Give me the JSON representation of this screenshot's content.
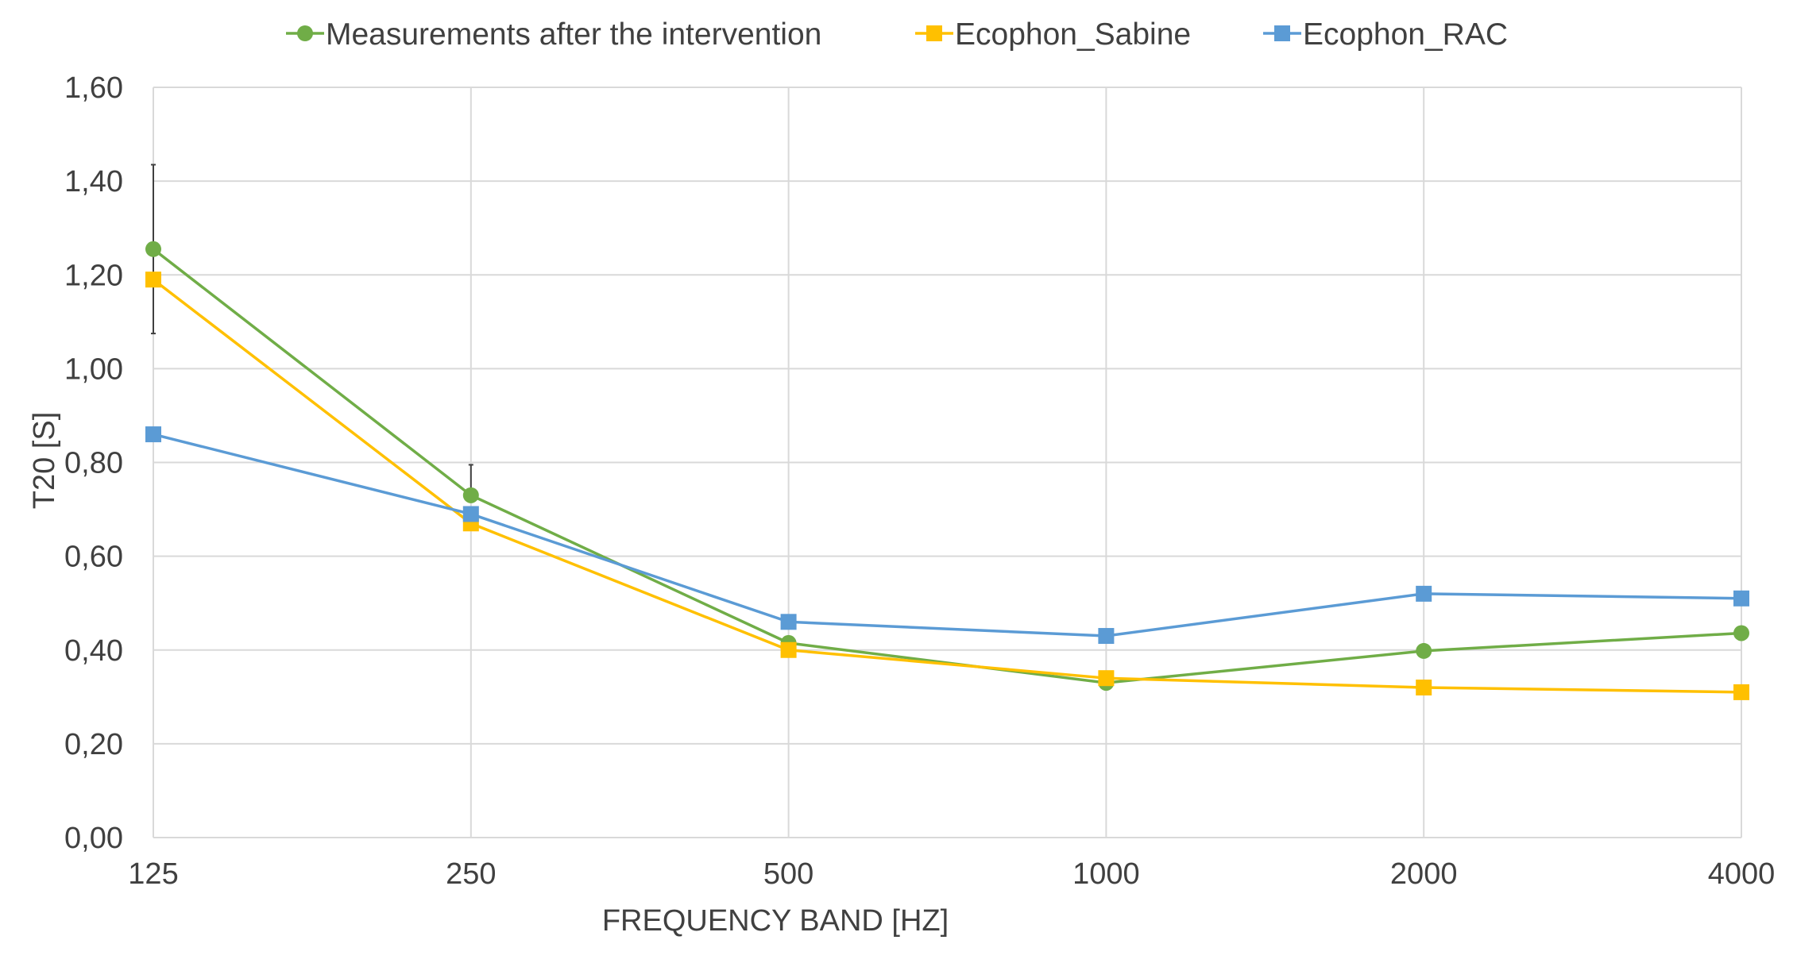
{
  "chart_data": {
    "type": "line",
    "categories": [
      "125",
      "250",
      "500",
      "1000",
      "2000",
      "4000"
    ],
    "xlabel": "FREQUENCY BAND [HZ]",
    "ylabel": "T20 [S]",
    "ylim": [
      0,
      1.6
    ],
    "yticks": [
      "0,00",
      "0,20",
      "0,40",
      "0,60",
      "0,80",
      "1,00",
      "1,20",
      "1,40",
      "1,60"
    ],
    "grid": true,
    "legend_position": "top",
    "series": [
      {
        "name": "Measurements after the intervention",
        "values": [
          1.255,
          0.73,
          0.415,
          0.33,
          0.398,
          0.436
        ],
        "marker": "circle",
        "color": "#70AD47",
        "error_bars": [
          {
            "index": 0,
            "low": 1.075,
            "high": 1.435
          },
          {
            "index": 1,
            "low": 0.73,
            "high": 0.795
          },
          {
            "index": 5,
            "low": 0.425,
            "high": 0.45
          }
        ]
      },
      {
        "name": "Ecophon_Sabine",
        "values": [
          1.19,
          0.67,
          0.4,
          0.34,
          0.32,
          0.31
        ],
        "marker": "square",
        "color": "#FFC000"
      },
      {
        "name": "Ecophon_RAC",
        "values": [
          0.86,
          0.69,
          0.46,
          0.43,
          0.52,
          0.51
        ],
        "marker": "square",
        "color": "#5B9BD5"
      }
    ]
  }
}
